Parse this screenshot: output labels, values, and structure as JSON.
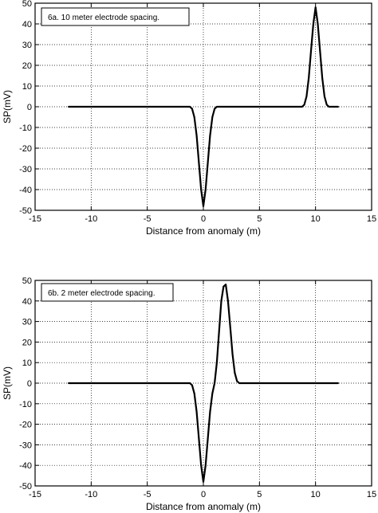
{
  "chart_data": [
    {
      "type": "line",
      "title": "",
      "xlabel": "Distance from anomaly (m)",
      "ylabel": "SP(mV)",
      "xlim": [
        -15,
        15
      ],
      "ylim": [
        -50,
        50
      ],
      "xticks": [
        -15,
        -10,
        -5,
        0,
        5,
        10,
        15
      ],
      "yticks": [
        -50,
        -40,
        -30,
        -20,
        -10,
        0,
        10,
        20,
        30,
        40,
        50
      ],
      "grid": true,
      "legend": "top-left",
      "annotations": [
        "6a. 10 meter electrode spacing."
      ],
      "series": [
        {
          "x": [
            -12,
            -1.2,
            -1,
            -0.8,
            -0.6,
            -0.4,
            -0.2,
            0,
            0.2,
            0.4,
            0.6,
            0.8,
            1,
            1.2,
            8.8,
            9,
            9.2,
            9.4,
            9.6,
            9.8,
            10,
            10.2,
            10.4,
            10.6,
            10.8,
            11,
            11.2,
            12
          ],
          "y": [
            0,
            0,
            -1,
            -5,
            -14,
            -27,
            -40,
            -48,
            -40,
            -27,
            -14,
            -5,
            -1,
            0,
            0,
            1,
            5,
            14,
            27,
            40,
            48,
            40,
            27,
            14,
            5,
            1,
            0,
            0
          ]
        }
      ]
    },
    {
      "type": "line",
      "title": "",
      "xlabel": "Distance from anomaly (m)",
      "ylabel": "SP(mV)",
      "xlim": [
        -15,
        15
      ],
      "ylim": [
        -50,
        50
      ],
      "xticks": [
        -15,
        -10,
        -5,
        0,
        5,
        10,
        15
      ],
      "yticks": [
        -50,
        -40,
        -30,
        -20,
        -10,
        0,
        10,
        20,
        30,
        40,
        50
      ],
      "grid": true,
      "legend": "top-left",
      "annotations": [
        "6b. 2 meter electrode spacing."
      ],
      "series": [
        {
          "x": [
            -12,
            -1.2,
            -1,
            -0.8,
            -0.6,
            -0.4,
            -0.2,
            0,
            0.2,
            0.4,
            0.6,
            0.8,
            1,
            1.2,
            1.4,
            1.6,
            1.8,
            2,
            2.2,
            2.4,
            2.6,
            2.8,
            3,
            3.2,
            12
          ],
          "y": [
            0,
            0,
            -1,
            -5,
            -14,
            -27,
            -40,
            -48,
            -40,
            -27,
            -14,
            -5,
            0,
            10,
            25,
            40,
            47,
            48,
            40,
            27,
            14,
            5,
            1,
            0,
            0
          ]
        }
      ]
    }
  ]
}
